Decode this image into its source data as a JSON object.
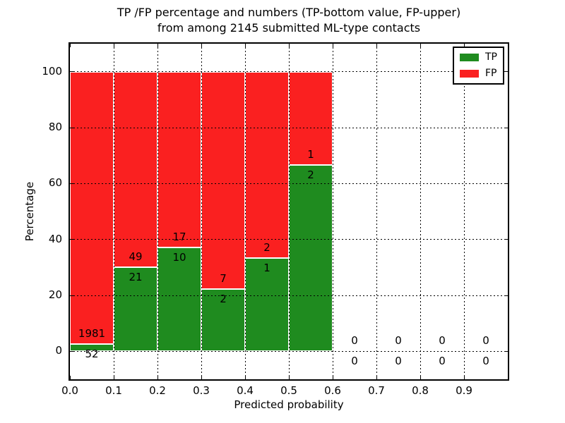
{
  "figure": {
    "title_line1": "TP /FP percentage and numbers (TP-bottom value, FP-upper)",
    "title_line2": "from among 2145 submitted ML-type contacts"
  },
  "axes": {
    "xlabel": "Predicted probability",
    "ylabel": "Percentage",
    "xlim": [
      0.0,
      1.0
    ],
    "ylim": [
      -10,
      110
    ],
    "grid": true,
    "xticks": [
      {
        "value": 0.0,
        "label": "0.0"
      },
      {
        "value": 0.1,
        "label": "0.1"
      },
      {
        "value": 0.2,
        "label": "0.2"
      },
      {
        "value": 0.3,
        "label": "0.3"
      },
      {
        "value": 0.4,
        "label": "0.4"
      },
      {
        "value": 0.5,
        "label": "0.5"
      },
      {
        "value": 0.6,
        "label": "0.6"
      },
      {
        "value": 0.7,
        "label": "0.7"
      },
      {
        "value": 0.8,
        "label": "0.8"
      },
      {
        "value": 0.9,
        "label": "0.9"
      }
    ],
    "yticks": [
      {
        "value": 0,
        "label": "0"
      },
      {
        "value": 20,
        "label": "20"
      },
      {
        "value": 40,
        "label": "40"
      },
      {
        "value": 60,
        "label": "60"
      },
      {
        "value": 80,
        "label": "80"
      },
      {
        "value": 100,
        "label": "100"
      }
    ]
  },
  "legend": {
    "position": "upper-right",
    "items": [
      {
        "label": "TP",
        "color": "#1f8b1f"
      },
      {
        "label": "FP",
        "color": "#fa2020"
      }
    ]
  },
  "colors": {
    "tp": "#1f8b1f",
    "fp": "#fa2020",
    "bar_edge": "#ffffff",
    "grid": "#000000",
    "frame": "#000000",
    "text": "#000000"
  },
  "chart_data": {
    "type": "bar",
    "stacked": true,
    "percentage_normalized": true,
    "title": "TP /FP percentage and numbers (TP-bottom value, FP-upper) from among 2145 submitted ML-type contacts",
    "xlabel": "Predicted probability",
    "ylabel": "Percentage",
    "total_contacts": 2145,
    "bin_width": 0.1,
    "categories": [
      0.0,
      0.1,
      0.2,
      0.3,
      0.4,
      0.5,
      0.6,
      0.7,
      0.8,
      0.9
    ],
    "series": [
      {
        "name": "TP",
        "counts": [
          52,
          21,
          10,
          2,
          1,
          2,
          0,
          0,
          0,
          0
        ]
      },
      {
        "name": "FP",
        "counts": [
          1981,
          49,
          17,
          7,
          2,
          1,
          0,
          0,
          0,
          0
        ]
      }
    ],
    "tp_percent_of_bin": [
      2.6,
      30.0,
      37.0,
      22.2,
      33.3,
      66.7,
      0,
      0,
      0,
      0
    ],
    "ylim": [
      -10,
      110
    ],
    "xlim": [
      0.0,
      1.0
    ],
    "legend_position": "upper-right",
    "grid": true
  }
}
